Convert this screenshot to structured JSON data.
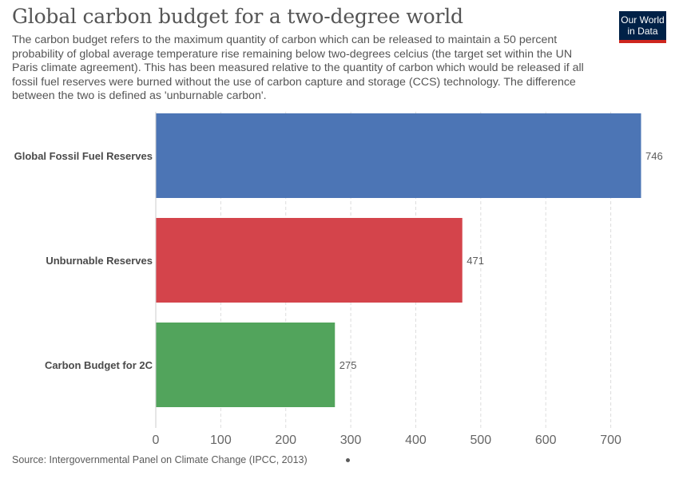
{
  "header": {
    "title": "Global carbon budget for a two-degree world",
    "subtitle": "The carbon budget refers to the maximum quantity of carbon which can be released to maintain a 50 percent probability of global average temperature rise remaining below two-degrees celcius (the target set within the UN Paris climate agreement). This has been measured relative to the quantity of carbon which would be released if all fossil fuel reserves were burned without the use of carbon capture and storage (CCS) technology. The difference between the two is defined as 'unburnable carbon'."
  },
  "logo": {
    "line1": "Our World",
    "line2": "in Data",
    "bg_color": "#002147",
    "accent_color": "#ce261e"
  },
  "footer": {
    "source": "Source: Intergovernmental Panel on Climate Change (IPCC, 2013)"
  },
  "chart_data": {
    "type": "bar",
    "orientation": "horizontal",
    "categories": [
      "Global Fossil Fuel Reserves",
      "Unburnable Reserves",
      "Carbon Budget for 2C"
    ],
    "values": [
      746,
      471,
      275
    ],
    "colors": [
      "#4c75b5",
      "#d4444b",
      "#52a45c"
    ],
    "value_labels": [
      "746",
      "471",
      "275"
    ],
    "xticks": [
      0,
      100,
      200,
      300,
      400,
      500,
      600,
      700
    ],
    "xlim": [
      0,
      746
    ],
    "grid": "vertical dashed"
  }
}
